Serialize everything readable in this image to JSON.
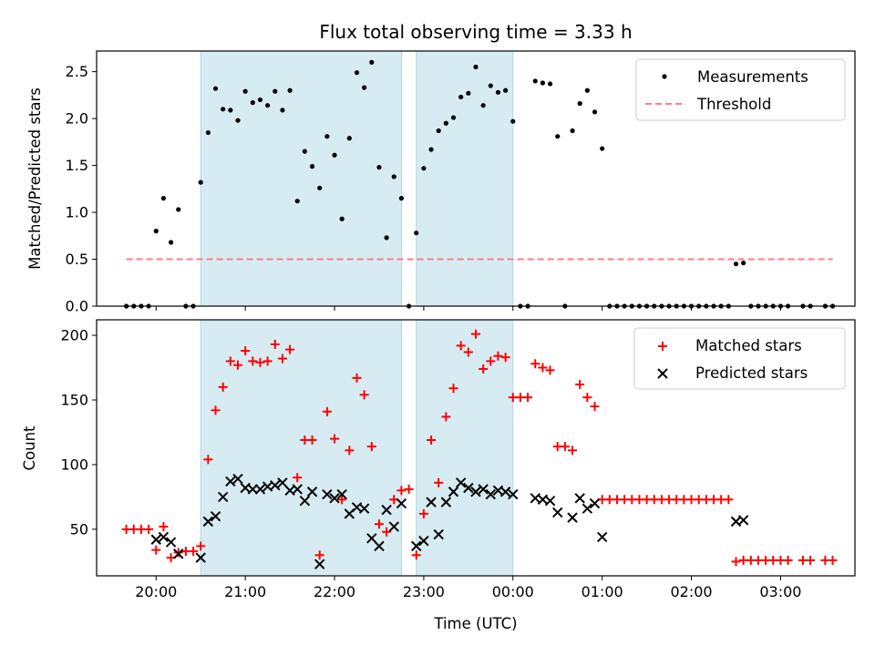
{
  "chart_data": [
    {
      "type": "scatter",
      "title": "Flux total observing time = 3.33 h",
      "xlabel": "",
      "ylabel": "Matched/Predicted stars",
      "ylim": [
        0,
        2.72
      ],
      "yticks": [
        "0.0",
        "0.5",
        "1.0",
        "1.5",
        "2.0",
        "2.5"
      ],
      "xlim": [
        "19:20",
        "03:50"
      ],
      "shaded_intervals": [
        [
          "20:30",
          "22:45"
        ],
        [
          "22:55",
          "00:00"
        ]
      ],
      "legend_position": "top-right",
      "series": [
        {
          "name": "Measurements",
          "marker": "dot",
          "color": "#000000",
          "points": [
            [
              "19:40",
              0
            ],
            [
              "19:45",
              0
            ],
            [
              "19:50",
              0
            ],
            [
              "19:55",
              0
            ],
            [
              "20:00",
              0.8
            ],
            [
              "20:05",
              1.15
            ],
            [
              "20:10",
              0.68
            ],
            [
              "20:15",
              1.03
            ],
            [
              "20:20",
              0
            ],
            [
              "20:25",
              0
            ],
            [
              "20:30",
              1.32
            ],
            [
              "20:35",
              1.85
            ],
            [
              "20:40",
              2.32
            ],
            [
              "20:45",
              2.1
            ],
            [
              "20:50",
              2.09
            ],
            [
              "20:55",
              1.98
            ],
            [
              "21:00",
              2.29
            ],
            [
              "21:05",
              2.17
            ],
            [
              "21:10",
              2.2
            ],
            [
              "21:15",
              2.14
            ],
            [
              "21:20",
              2.29
            ],
            [
              "21:25",
              2.09
            ],
            [
              "21:30",
              2.3
            ],
            [
              "21:35",
              1.12
            ],
            [
              "21:40",
              1.65
            ],
            [
              "21:45",
              1.49
            ],
            [
              "21:50",
              1.26
            ],
            [
              "21:55",
              1.81
            ],
            [
              "22:00",
              1.61
            ],
            [
              "22:05",
              0.93
            ],
            [
              "22:10",
              1.79
            ],
            [
              "22:15",
              2.49
            ],
            [
              "22:20",
              2.33
            ],
            [
              "22:25",
              2.6
            ],
            [
              "22:30",
              1.48
            ],
            [
              "22:35",
              0.73
            ],
            [
              "22:40",
              1.38
            ],
            [
              "22:45",
              1.15
            ],
            [
              "22:50",
              0
            ],
            [
              "22:55",
              0.78
            ],
            [
              "23:00",
              1.47
            ],
            [
              "23:05",
              1.67
            ],
            [
              "23:10",
              1.87
            ],
            [
              "23:15",
              1.95
            ],
            [
              "23:20",
              2.01
            ],
            [
              "23:25",
              2.23
            ],
            [
              "23:30",
              2.27
            ],
            [
              "23:35",
              2.55
            ],
            [
              "23:40",
              2.14
            ],
            [
              "23:45",
              2.35
            ],
            [
              "23:50",
              2.28
            ],
            [
              "23:55",
              2.3
            ],
            [
              "00:00",
              1.97
            ],
            [
              "00:05",
              0
            ],
            [
              "00:10",
              0
            ],
            [
              "00:15",
              2.4
            ],
            [
              "00:20",
              2.38
            ],
            [
              "00:25",
              2.37
            ],
            [
              "00:30",
              1.81
            ],
            [
              "00:35",
              0
            ],
            [
              "00:40",
              1.87
            ],
            [
              "00:45",
              2.16
            ],
            [
              "00:50",
              2.3
            ],
            [
              "00:55",
              2.07
            ],
            [
              "01:00",
              1.68
            ],
            [
              "01:05",
              0
            ],
            [
              "01:10",
              0
            ],
            [
              "01:15",
              0
            ],
            [
              "01:20",
              0
            ],
            [
              "01:25",
              0
            ],
            [
              "01:30",
              0
            ],
            [
              "01:35",
              0
            ],
            [
              "01:40",
              0
            ],
            [
              "01:45",
              0
            ],
            [
              "01:50",
              0
            ],
            [
              "01:55",
              0
            ],
            [
              "02:00",
              0
            ],
            [
              "02:05",
              0
            ],
            [
              "02:10",
              0
            ],
            [
              "02:15",
              0
            ],
            [
              "02:20",
              0
            ],
            [
              "02:25",
              0
            ],
            [
              "02:30",
              0.45
            ],
            [
              "02:35",
              0.46
            ],
            [
              "02:40",
              0
            ],
            [
              "02:45",
              0
            ],
            [
              "02:50",
              0
            ],
            [
              "02:55",
              0
            ],
            [
              "03:00",
              0
            ],
            [
              "03:05",
              0
            ],
            [
              "03:15",
              0
            ],
            [
              "03:20",
              0
            ],
            [
              "03:30",
              0
            ],
            [
              "03:35",
              0
            ]
          ]
        },
        {
          "name": "Threshold",
          "marker": "dashed-line",
          "color": "#ff7f7f",
          "points": [
            [
              "19:40",
              0.5
            ],
            [
              "03:35",
              0.5
            ]
          ]
        }
      ]
    },
    {
      "type": "scatter",
      "title": "",
      "xlabel": "Time (UTC)",
      "ylabel": "Count",
      "ylim": [
        14,
        212
      ],
      "yticks": [
        "50",
        "100",
        "150",
        "200"
      ],
      "xlim": [
        "19:20",
        "03:50"
      ],
      "xticks": [
        "20:00",
        "21:00",
        "22:00",
        "23:00",
        "00:00",
        "01:00",
        "02:00",
        "03:00"
      ],
      "shaded_intervals": [
        [
          "20:30",
          "22:45"
        ],
        [
          "22:55",
          "00:00"
        ]
      ],
      "legend_position": "top-right",
      "series": [
        {
          "name": "Matched stars",
          "marker": "plus",
          "color": "#ff0000",
          "points": [
            [
              "19:40",
              50
            ],
            [
              "19:45",
              50
            ],
            [
              "19:50",
              50
            ],
            [
              "19:55",
              50
            ],
            [
              "20:00",
              34
            ],
            [
              "20:05",
              52
            ],
            [
              "20:10",
              28
            ],
            [
              "20:15",
              32
            ],
            [
              "20:20",
              33
            ],
            [
              "20:25",
              33
            ],
            [
              "20:30",
              37
            ],
            [
              "20:35",
              104
            ],
            [
              "20:40",
              142
            ],
            [
              "20:45",
              160
            ],
            [
              "20:50",
              180
            ],
            [
              "20:55",
              177
            ],
            [
              "21:00",
              188
            ],
            [
              "21:05",
              180
            ],
            [
              "21:10",
              179
            ],
            [
              "21:15",
              180
            ],
            [
              "21:20",
              193
            ],
            [
              "21:25",
              182
            ],
            [
              "21:30",
              189
            ],
            [
              "21:35",
              90
            ],
            [
              "21:40",
              119
            ],
            [
              "21:45",
              119
            ],
            [
              "21:50",
              30
            ],
            [
              "21:55",
              141
            ],
            [
              "22:00",
              120
            ],
            [
              "22:05",
              73
            ],
            [
              "22:10",
              111
            ],
            [
              "22:15",
              167
            ],
            [
              "22:20",
              154
            ],
            [
              "22:25",
              114
            ],
            [
              "22:30",
              54
            ],
            [
              "22:35",
              48
            ],
            [
              "22:40",
              73
            ],
            [
              "22:45",
              80
            ],
            [
              "22:50",
              81
            ],
            [
              "22:55",
              30
            ],
            [
              "23:00",
              62
            ],
            [
              "23:05",
              119
            ],
            [
              "23:10",
              86
            ],
            [
              "23:15",
              137
            ],
            [
              "23:20",
              159
            ],
            [
              "23:25",
              192
            ],
            [
              "23:30",
              187
            ],
            [
              "23:35",
              201
            ],
            [
              "23:40",
              174
            ],
            [
              "23:45",
              180
            ],
            [
              "23:50",
              184
            ],
            [
              "23:55",
              183
            ],
            [
              "00:00",
              152
            ],
            [
              "00:05",
              152
            ],
            [
              "00:10",
              152
            ],
            [
              "00:15",
              178
            ],
            [
              "00:20",
              175
            ],
            [
              "00:25",
              173
            ],
            [
              "00:30",
              114
            ],
            [
              "00:35",
              114
            ],
            [
              "00:40",
              111
            ],
            [
              "00:45",
              162
            ],
            [
              "00:50",
              152
            ],
            [
              "00:55",
              145
            ],
            [
              "01:00",
              73
            ],
            [
              "01:05",
              73
            ],
            [
              "01:10",
              73
            ],
            [
              "01:15",
              73
            ],
            [
              "01:20",
              73
            ],
            [
              "01:25",
              73
            ],
            [
              "01:30",
              73
            ],
            [
              "01:35",
              73
            ],
            [
              "01:40",
              73
            ],
            [
              "01:45",
              73
            ],
            [
              "01:50",
              73
            ],
            [
              "01:55",
              73
            ],
            [
              "02:00",
              73
            ],
            [
              "02:05",
              73
            ],
            [
              "02:10",
              73
            ],
            [
              "02:15",
              73
            ],
            [
              "02:20",
              73
            ],
            [
              "02:25",
              73
            ],
            [
              "02:30",
              25
            ],
            [
              "02:35",
              26
            ],
            [
              "02:40",
              26
            ],
            [
              "02:45",
              26
            ],
            [
              "02:50",
              26
            ],
            [
              "02:55",
              26
            ],
            [
              "03:00",
              26
            ],
            [
              "03:05",
              26
            ],
            [
              "03:15",
              26
            ],
            [
              "03:20",
              26
            ],
            [
              "03:30",
              26
            ],
            [
              "03:35",
              26
            ]
          ]
        },
        {
          "name": "Predicted stars",
          "marker": "x",
          "color": "#000000",
          "points": [
            [
              "20:00",
              42
            ],
            [
              "20:05",
              44
            ],
            [
              "20:10",
              40
            ],
            [
              "20:15",
              31
            ],
            [
              "20:30",
              28
            ],
            [
              "20:35",
              56
            ],
            [
              "20:40",
              60
            ],
            [
              "20:45",
              75
            ],
            [
              "20:50",
              87
            ],
            [
              "20:55",
              89
            ],
            [
              "21:00",
              82
            ],
            [
              "21:05",
              81
            ],
            [
              "21:10",
              81
            ],
            [
              "21:15",
              83
            ],
            [
              "21:20",
              84
            ],
            [
              "21:25",
              86
            ],
            [
              "21:30",
              80
            ],
            [
              "21:35",
              81
            ],
            [
              "21:40",
              72
            ],
            [
              "21:45",
              79
            ],
            [
              "21:50",
              23
            ],
            [
              "21:55",
              77
            ],
            [
              "22:00",
              74
            ],
            [
              "22:05",
              77
            ],
            [
              "22:10",
              62
            ],
            [
              "22:15",
              67
            ],
            [
              "22:20",
              66
            ],
            [
              "22:25",
              43
            ],
            [
              "22:30",
              37
            ],
            [
              "22:35",
              65
            ],
            [
              "22:40",
              52
            ],
            [
              "22:45",
              70
            ],
            [
              "22:55",
              37
            ],
            [
              "23:00",
              41
            ],
            [
              "23:05",
              71
            ],
            [
              "23:10",
              46
            ],
            [
              "23:15",
              71
            ],
            [
              "23:20",
              79
            ],
            [
              "23:25",
              86
            ],
            [
              "23:30",
              82
            ],
            [
              "23:35",
              79
            ],
            [
              "23:40",
              81
            ],
            [
              "23:45",
              77
            ],
            [
              "23:50",
              80
            ],
            [
              "23:55",
              79
            ],
            [
              "00:00",
              77
            ],
            [
              "00:15",
              74
            ],
            [
              "00:20",
              73
            ],
            [
              "00:25",
              72
            ],
            [
              "00:30",
              63
            ],
            [
              "00:40",
              59
            ],
            [
              "00:45",
              74
            ],
            [
              "00:50",
              66
            ],
            [
              "00:55",
              70
            ],
            [
              "01:00",
              44
            ],
            [
              "02:30",
              56
            ],
            [
              "02:35",
              57
            ]
          ]
        }
      ]
    }
  ]
}
